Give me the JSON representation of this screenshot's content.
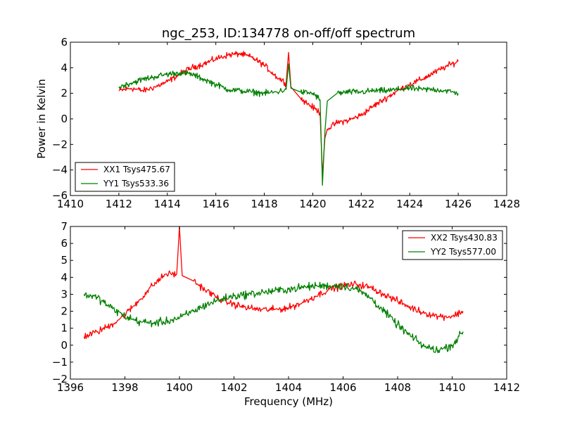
{
  "figure": {
    "title": "ngc_253, ID:134778 on-off/off spectrum"
  },
  "chart_data": [
    {
      "type": "line",
      "title": "ngc_253, ID:134778 on-off/off spectrum",
      "xlabel": "",
      "ylabel": "Power in Kelvin",
      "xlim": [
        1410,
        1428
      ],
      "ylim": [
        -6,
        6
      ],
      "xticks": [
        1410,
        1412,
        1414,
        1416,
        1418,
        1420,
        1422,
        1424,
        1426,
        1428
      ],
      "yticks": [
        -6,
        -4,
        -2,
        0,
        2,
        4,
        6
      ],
      "grid": false,
      "legend_position": "lower-left",
      "series": [
        {
          "name": "XX1 Tsys475.67",
          "color": "#ff0000",
          "x": [
            1412.0,
            1412.5,
            1413.0,
            1413.5,
            1414.0,
            1414.5,
            1415.0,
            1415.5,
            1416.0,
            1416.5,
            1417.0,
            1417.5,
            1418.0,
            1418.5,
            1418.9,
            1419.0,
            1419.1,
            1419.5,
            1420.0,
            1420.3,
            1420.4,
            1420.5,
            1420.6,
            1421.0,
            1421.5,
            1422.0,
            1422.5,
            1423.0,
            1423.5,
            1424.0,
            1424.5,
            1425.0,
            1425.5,
            1426.0
          ],
          "y": [
            2.2,
            2.4,
            2.2,
            2.5,
            2.9,
            3.5,
            4.0,
            4.3,
            4.7,
            5.0,
            5.1,
            4.8,
            4.2,
            3.3,
            2.8,
            5.2,
            2.5,
            1.6,
            0.9,
            0.5,
            -4.4,
            -1.5,
            -0.8,
            -0.3,
            -0.1,
            0.3,
            1.0,
            1.6,
            2.2,
            2.7,
            3.1,
            3.6,
            4.1,
            4.5
          ],
          "noise": 0.35
        },
        {
          "name": "YY1 Tsys533.36",
          "color": "#008000",
          "x": [
            1412.0,
            1412.5,
            1413.0,
            1413.5,
            1414.0,
            1414.5,
            1415.0,
            1415.5,
            1416.0,
            1416.5,
            1417.0,
            1417.5,
            1418.0,
            1418.5,
            1418.9,
            1419.0,
            1419.1,
            1419.5,
            1420.0,
            1420.3,
            1420.4,
            1420.5,
            1420.6,
            1421.0,
            1421.5,
            1422.0,
            1422.5,
            1423.0,
            1423.5,
            1424.0,
            1424.5,
            1425.0,
            1425.5,
            1426.0
          ],
          "y": [
            2.5,
            2.8,
            3.1,
            3.3,
            3.5,
            3.6,
            3.5,
            3.1,
            2.7,
            2.3,
            2.2,
            2.1,
            2.0,
            2.1,
            2.3,
            4.3,
            2.4,
            2.1,
            2.0,
            1.5,
            -5.2,
            -1.0,
            1.4,
            2.0,
            2.1,
            2.1,
            2.2,
            2.2,
            2.3,
            2.4,
            2.3,
            2.3,
            2.2,
            2.0
          ],
          "noise": 0.35
        }
      ]
    },
    {
      "type": "line",
      "title": "",
      "xlabel": "Frequency (MHz)",
      "ylabel": "",
      "xlim": [
        1396,
        1412
      ],
      "ylim": [
        -2,
        7
      ],
      "xticks": [
        1396,
        1398,
        1400,
        1402,
        1404,
        1406,
        1408,
        1410,
        1412
      ],
      "yticks": [
        -2,
        -1,
        0,
        1,
        2,
        3,
        4,
        5,
        6,
        7
      ],
      "grid": false,
      "legend_position": "top-right",
      "series": [
        {
          "name": "XX2 Tsys430.83",
          "color": "#ff0000",
          "x": [
            1396.5,
            1397.0,
            1397.5,
            1398.0,
            1398.5,
            1399.0,
            1399.5,
            1399.9,
            1400.0,
            1400.1,
            1400.5,
            1401.0,
            1401.5,
            1402.0,
            1402.5,
            1403.0,
            1403.5,
            1404.0,
            1404.5,
            1405.0,
            1405.5,
            1406.0,
            1406.5,
            1407.0,
            1407.5,
            1408.0,
            1408.5,
            1409.0,
            1409.5,
            1410.0,
            1410.4
          ],
          "y": [
            0.5,
            0.8,
            1.2,
            1.8,
            2.6,
            3.5,
            4.2,
            4.2,
            7.0,
            4.1,
            3.8,
            3.2,
            2.7,
            2.4,
            2.2,
            2.1,
            2.1,
            2.2,
            2.5,
            2.9,
            3.3,
            3.5,
            3.6,
            3.4,
            3.0,
            2.6,
            2.2,
            1.9,
            1.7,
            1.7,
            2.0
          ],
          "noise": 0.3
        },
        {
          "name": "YY2 Tsys577.00",
          "color": "#008000",
          "x": [
            1396.5,
            1397.0,
            1397.5,
            1398.0,
            1398.5,
            1399.0,
            1399.5,
            1400.0,
            1400.5,
            1401.0,
            1401.5,
            1402.0,
            1402.5,
            1403.0,
            1403.5,
            1404.0,
            1404.5,
            1405.0,
            1405.5,
            1406.0,
            1406.5,
            1407.0,
            1407.5,
            1408.0,
            1408.5,
            1409.0,
            1409.5,
            1410.0,
            1410.4
          ],
          "y": [
            3.0,
            2.8,
            2.2,
            1.7,
            1.4,
            1.3,
            1.4,
            1.6,
            2.0,
            2.4,
            2.7,
            2.9,
            3.0,
            3.1,
            3.2,
            3.3,
            3.4,
            3.5,
            3.5,
            3.5,
            3.3,
            2.8,
            2.0,
            1.2,
            0.5,
            -0.1,
            -0.3,
            0.0,
            0.8
          ],
          "noise": 0.35
        }
      ]
    }
  ]
}
